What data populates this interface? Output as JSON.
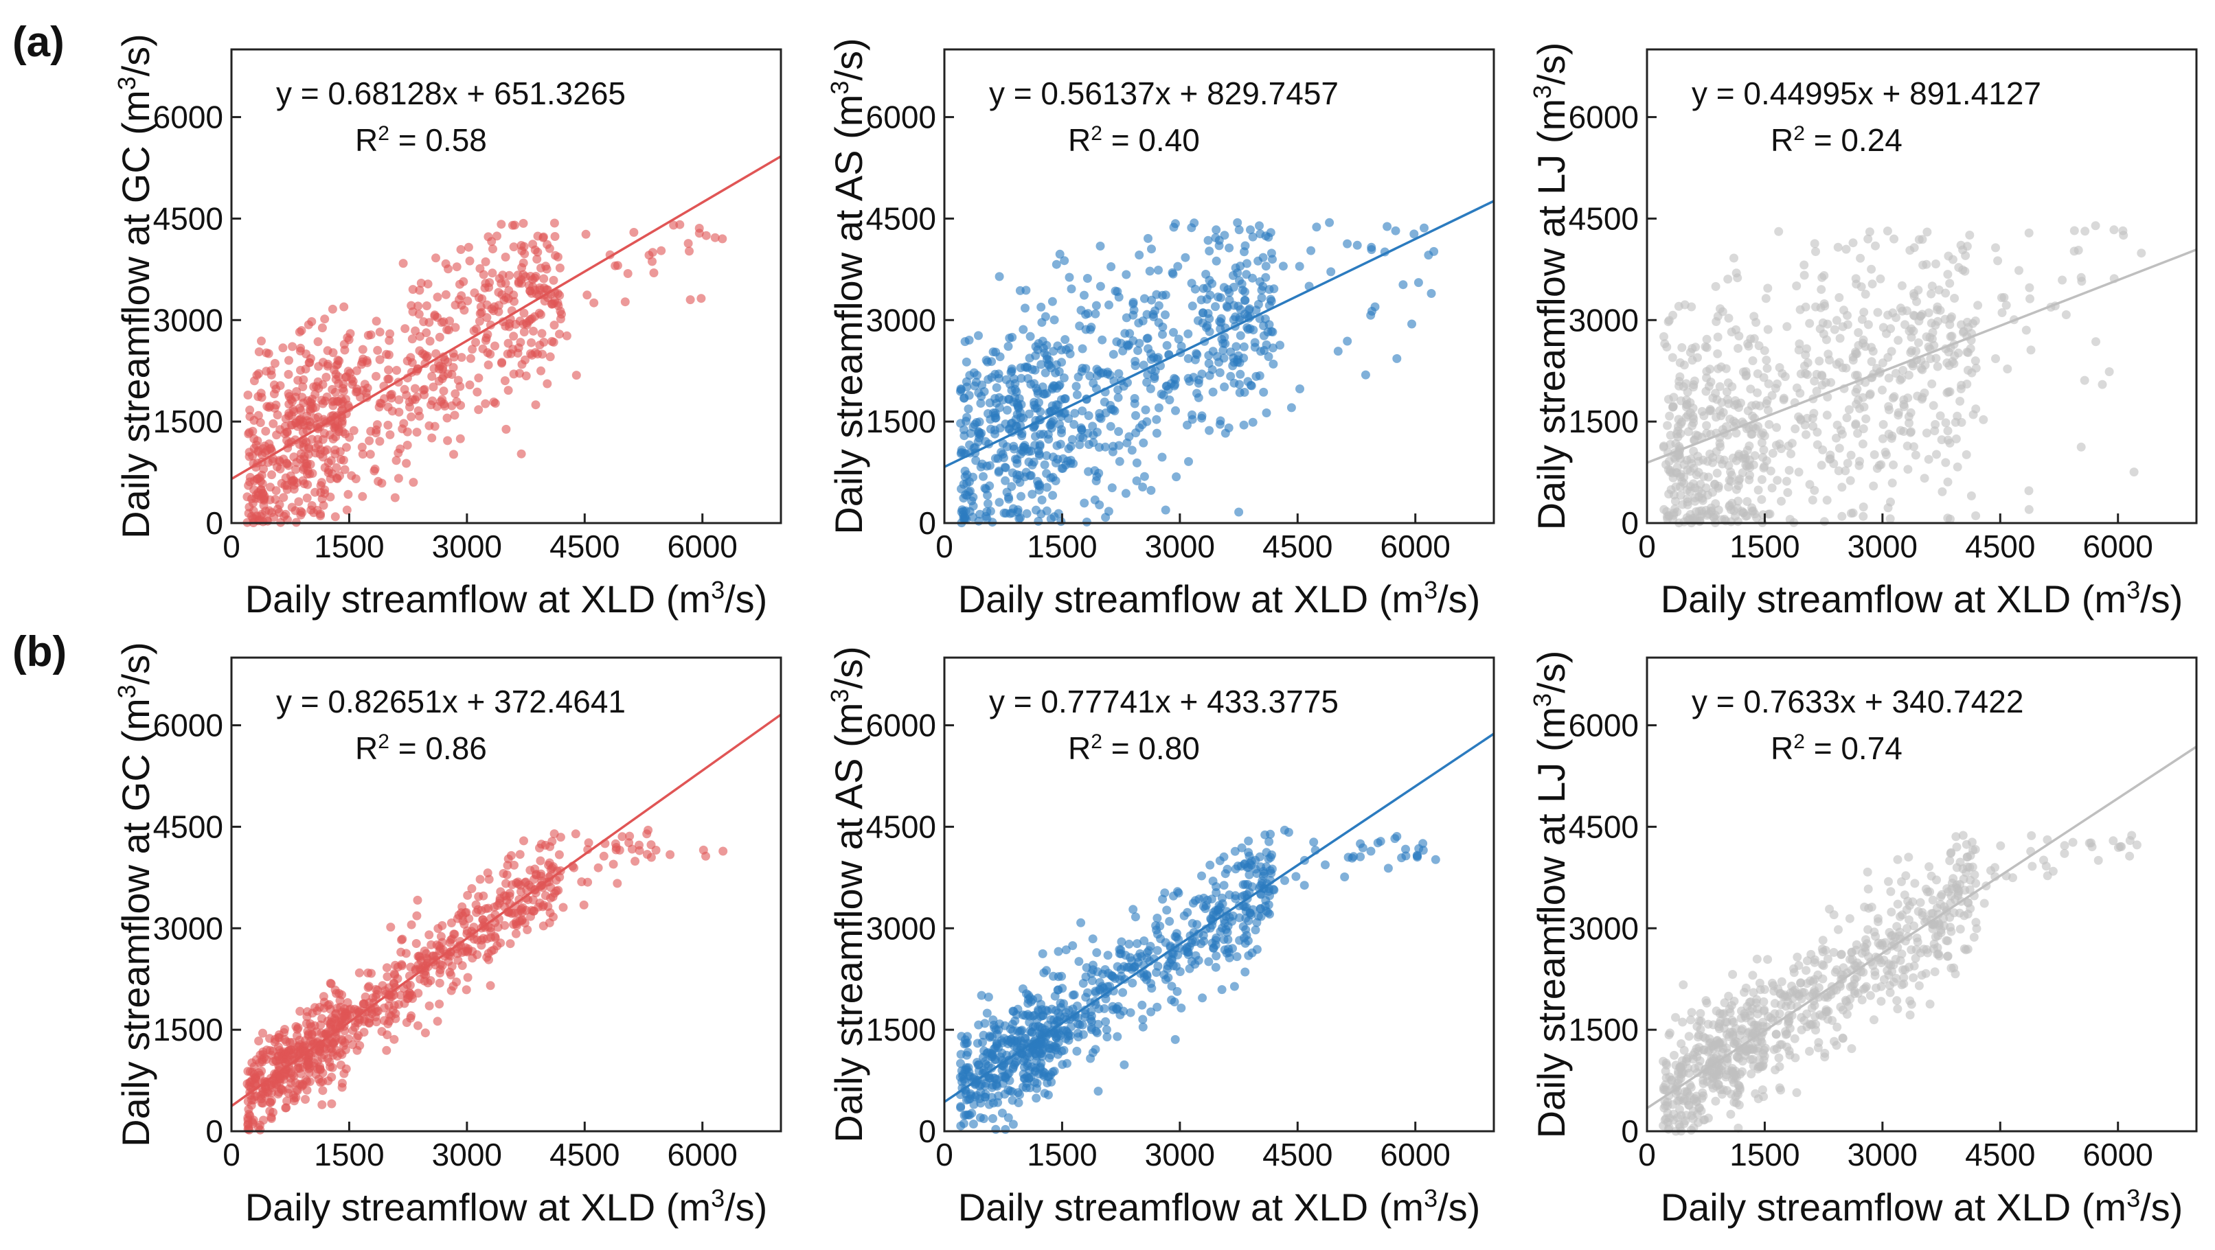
{
  "figure": {
    "row_labels": [
      "(a)",
      "(b)"
    ]
  },
  "chart_data": [
    {
      "type": "scatter",
      "row": "(a)",
      "site": "GC",
      "color": "#e05555",
      "xlabel": "Daily streamflow at XLD",
      "ylabel": "Daily streamflow at GC",
      "unit": "(m3/s)",
      "xlim": [
        0,
        7000
      ],
      "ylim": [
        0,
        7000
      ],
      "xticks": [
        "0",
        "1500",
        "3000",
        "4500",
        "6000"
      ],
      "yticks": [
        "0",
        "1500",
        "3000",
        "4500",
        "6000"
      ],
      "equation": "y = 0.68128x + 651.3265",
      "r2_label": "R",
      "r2_sup": "2",
      "r2_value": " = 0.58",
      "fit": {
        "slope": 0.68128,
        "intercept": 651.3265
      },
      "cloud": {
        "n": 800,
        "noise": 700,
        "seed": 11
      }
    },
    {
      "type": "scatter",
      "row": "(a)",
      "site": "AS",
      "color": "#2b7bbf",
      "xlabel": "Daily streamflow at XLD",
      "ylabel": "Daily streamflow at AS",
      "unit": "(m3/s)",
      "xlim": [
        0,
        7000
      ],
      "ylim": [
        0,
        7000
      ],
      "xticks": [
        "0",
        "1500",
        "3000",
        "4500",
        "6000"
      ],
      "yticks": [
        "0",
        "1500",
        "3000",
        "4500",
        "6000"
      ],
      "equation": "y = 0.56137x + 829.7457",
      "r2_label": "R",
      "r2_sup": "2",
      "r2_value": " = 0.40",
      "fit": {
        "slope": 0.56137,
        "intercept": 829.7457
      },
      "cloud": {
        "n": 800,
        "noise": 850,
        "seed": 23
      }
    },
    {
      "type": "scatter",
      "row": "(a)",
      "site": "LJ",
      "color": "#bfbfbf",
      "xlabel": "Daily streamflow at XLD",
      "ylabel": "Daily streamflow at LJ",
      "unit": "(m3/s)",
      "xlim": [
        0,
        7000
      ],
      "ylim": [
        0,
        7000
      ],
      "xticks": [
        "0",
        "1500",
        "3000",
        "4500",
        "6000"
      ],
      "yticks": [
        "0",
        "1500",
        "3000",
        "4500",
        "6000"
      ],
      "equation": "y = 0.44995x + 891.4127",
      "r2_label": "R",
      "r2_sup": "2",
      "r2_value": " = 0.24",
      "fit": {
        "slope": 0.44995,
        "intercept": 891.4127
      },
      "cloud": {
        "n": 800,
        "noise": 1000,
        "seed": 37
      }
    },
    {
      "type": "scatter",
      "row": "(b)",
      "site": "GC",
      "color": "#e05555",
      "xlabel": "Daily streamflow at XLD",
      "ylabel": "Daily streamflow at GC",
      "unit": "(m3/s)",
      "xlim": [
        0,
        7000
      ],
      "ylim": [
        0,
        7000
      ],
      "xticks": [
        "0",
        "1500",
        "3000",
        "4500",
        "6000"
      ],
      "yticks": [
        "0",
        "1500",
        "3000",
        "4500",
        "6000"
      ],
      "equation": "y = 0.82651x + 372.4641",
      "r2_label": "R",
      "r2_sup": "2",
      "r2_value": " = 0.86",
      "fit": {
        "slope": 0.82651,
        "intercept": 372.4641
      },
      "cloud": {
        "n": 800,
        "noise": 330,
        "seed": 41
      }
    },
    {
      "type": "scatter",
      "row": "(b)",
      "site": "AS",
      "color": "#2b7bbf",
      "xlabel": "Daily streamflow at XLD",
      "ylabel": "Daily streamflow at AS",
      "unit": "(m3/s)",
      "xlim": [
        0,
        7000
      ],
      "ylim": [
        0,
        7000
      ],
      "xticks": [
        "0",
        "1500",
        "3000",
        "4500",
        "6000"
      ],
      "yticks": [
        "0",
        "1500",
        "3000",
        "4500",
        "6000"
      ],
      "equation": "y = 0.77741x + 433.3775",
      "r2_label": "R",
      "r2_sup": "2",
      "r2_value": " = 0.80",
      "fit": {
        "slope": 0.77741,
        "intercept": 433.3775
      },
      "cloud": {
        "n": 800,
        "noise": 400,
        "seed": 53
      }
    },
    {
      "type": "scatter",
      "row": "(b)",
      "site": "LJ",
      "color": "#bfbfbf",
      "xlabel": "Daily streamflow at XLD",
      "ylabel": "Daily streamflow at LJ",
      "unit": "(m3/s)",
      "xlim": [
        0,
        7000
      ],
      "ylim": [
        0,
        7000
      ],
      "xticks": [
        "0",
        "1500",
        "3000",
        "4500",
        "6000"
      ],
      "yticks": [
        "0",
        "1500",
        "3000",
        "4500",
        "6000"
      ],
      "equation": "y = 0.7633x + 340.7422",
      "r2_label": "R",
      "r2_sup": "2",
      "r2_value": " = 0.74",
      "fit": {
        "slope": 0.7633,
        "intercept": 340.7422
      },
      "cloud": {
        "n": 800,
        "noise": 450,
        "seed": 67
      }
    }
  ]
}
